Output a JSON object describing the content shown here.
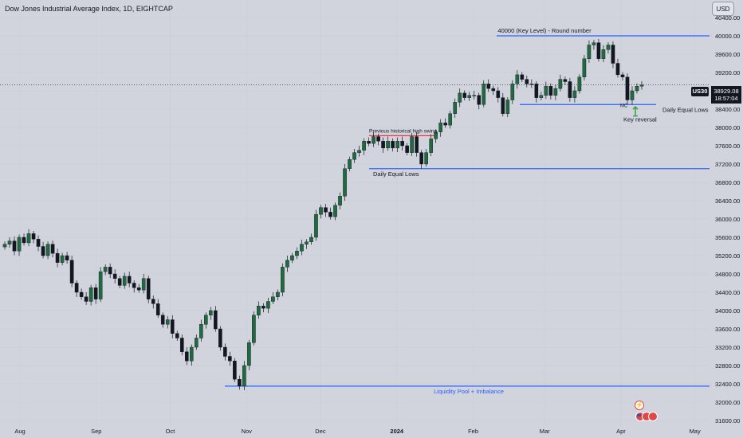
{
  "header": {
    "title": "Dow Jones Industrial Average Index, 1D, EIGHTCAP",
    "currency": "USD"
  },
  "price_marker": {
    "symbol": "US30",
    "price": "38929.08",
    "countdown": "18:57:04"
  },
  "icons": {
    "bolt": "lightning-icon",
    "flags": "us-flag-icon"
  },
  "colors": {
    "background": "#d1d4dc",
    "bullish": "#1f6b3f",
    "bearish": "#131722",
    "level_line": "#2962ff",
    "swing_line": "#f23645",
    "arrow": "#43a047"
  },
  "chart_data": {
    "type": "candlestick",
    "title": "Dow Jones Industrial Average Index, 1D, EIGHTCAP",
    "ylim": [
      31600,
      40400
    ],
    "y_ticks": [
      31600,
      32000,
      32400,
      32800,
      33200,
      33600,
      34000,
      34400,
      34800,
      35200,
      35600,
      36000,
      36400,
      36800,
      37200,
      37600,
      38000,
      38400,
      38800,
      39200,
      39600,
      40000,
      40400
    ],
    "x_ticks": [
      {
        "label": "Aug",
        "day": 0
      },
      {
        "label": "Sep",
        "day": 31
      },
      {
        "label": "Oct",
        "day": 61
      },
      {
        "label": "Nov",
        "day": 92
      },
      {
        "label": "Dec",
        "day": 122
      },
      {
        "label": "2024",
        "day": 153
      },
      {
        "label": "Feb",
        "day": 184
      },
      {
        "label": "Mar",
        "day": 213
      },
      {
        "label": "Apr",
        "day": 244
      },
      {
        "label": "May",
        "day": 274
      }
    ],
    "closes": [
      35450,
      35520,
      35300,
      35600,
      35480,
      35680,
      35560,
      35400,
      35200,
      35450,
      35250,
      35050,
      35200,
      35100,
      34600,
      34400,
      34300,
      34200,
      34500,
      34250,
      34850,
      34950,
      34800,
      34700,
      34550,
      34750,
      34600,
      34500,
      34450,
      34700,
      34250,
      34150,
      33900,
      33700,
      33800,
      33500,
      33400,
      33100,
      32900,
      33200,
      33400,
      33700,
      33900,
      34000,
      33600,
      33200,
      33000,
      32900,
      32500,
      32350,
      32800,
      33300,
      33900,
      34100,
      34050,
      34200,
      34300,
      34400,
      34950,
      35100,
      35200,
      35300,
      35450,
      35500,
      35600,
      36100,
      36250,
      36150,
      36050,
      36300,
      36500,
      37100,
      37300,
      37450,
      37500,
      37700,
      37650,
      37800,
      37700,
      37550,
      37700,
      37550,
      37700,
      37600,
      37450,
      37800,
      37450,
      37200,
      37450,
      37750,
      37900,
      38100,
      38050,
      38300,
      38550,
      38750,
      38650,
      38700,
      38700,
      38500,
      38950,
      38850,
      38800,
      38650,
      38300,
      38600,
      38950,
      39150,
      39050,
      38950,
      38950,
      38650,
      38700,
      38900,
      38700,
      38850,
      39050,
      39000,
      38650,
      38800,
      39100,
      39500,
      39800,
      39850,
      39500,
      39700,
      39800,
      39400,
      39150,
      39100,
      38600,
      38800,
      38900,
      38929
    ],
    "levels": [
      {
        "label": "40000 (Key Level) - Round number",
        "value": 40000
      },
      {
        "label": "Daily Equal Lows",
        "value": 38500
      },
      {
        "label": "Daily Equal Lows",
        "value": 37100
      },
      {
        "label": "Liquidity Pool + Imbalance",
        "value": 32350
      }
    ],
    "swing_high": {
      "label": "Previous historical high swing",
      "value": 37820
    },
    "annotations": [
      {
        "label": "Key reversal",
        "value": 38200
      },
      {
        "label": "MC",
        "value": 38500
      }
    ]
  }
}
